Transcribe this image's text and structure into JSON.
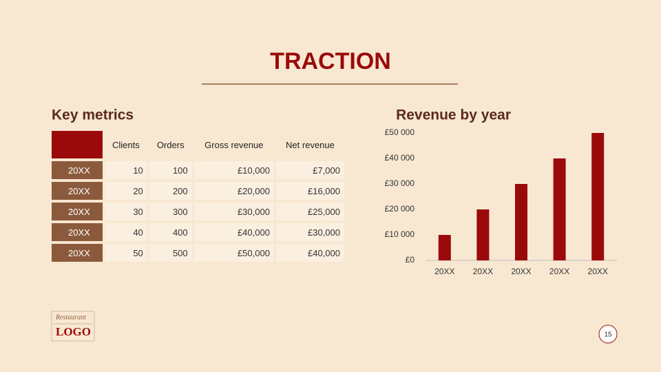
{
  "header": {
    "title": "TRACTION"
  },
  "table": {
    "title": "Key metrics",
    "columns": [
      "Clients",
      "Orders",
      "Gross revenue",
      "Net revenue"
    ],
    "rows": [
      [
        "20XX",
        "10",
        "100",
        "£10,000",
        "£7,000"
      ],
      [
        "20XX",
        "20",
        "200",
        "£20,000",
        "£16,000"
      ],
      [
        "20XX",
        "30",
        "300",
        "£30,000",
        "£25,000"
      ],
      [
        "20XX",
        "40",
        "400",
        "£40,000",
        "£30,000"
      ],
      [
        "20XX",
        "50",
        "500",
        "£50,000",
        "£40,000"
      ]
    ]
  },
  "chart_data": {
    "type": "bar",
    "title": "Revenue by year",
    "categories": [
      "20XX",
      "20XX",
      "20XX",
      "20XX",
      "20XX"
    ],
    "values": [
      10000,
      20000,
      30000,
      40000,
      50000
    ],
    "color": "#9b0a0a",
    "ylim": [
      0,
      50000
    ],
    "yticks": [
      {
        "value": 0,
        "label": "£0"
      },
      {
        "value": 10000,
        "label": "£10 000"
      },
      {
        "value": 20000,
        "label": "£20 000"
      },
      {
        "value": 30000,
        "label": "£30 000"
      },
      {
        "value": 40000,
        "label": "£40 000"
      },
      {
        "value": 50000,
        "label": "£50 000"
      }
    ]
  },
  "logo": {
    "top": "Restaurant",
    "bottom": "LOGO"
  },
  "page_number": "15"
}
